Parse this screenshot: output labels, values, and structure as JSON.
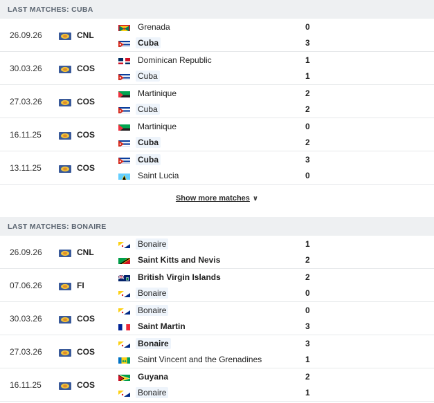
{
  "sections": [
    {
      "title": "LAST MATCHES: CUBA",
      "matches": [
        {
          "date": "26.09.26",
          "comp": "CNL",
          "home": "Grenada",
          "home_flag": "grenada",
          "home_score": "0",
          "away": "Cuba",
          "away_flag": "cuba",
          "away_score": "3",
          "winner": "away",
          "focus": "away"
        },
        {
          "date": "30.03.26",
          "comp": "COS",
          "home": "Dominican Republic",
          "home_flag": "dominican",
          "home_score": "1",
          "away": "Cuba",
          "away_flag": "cuba",
          "away_score": "1",
          "winner": "",
          "focus": "away"
        },
        {
          "date": "27.03.26",
          "comp": "COS",
          "home": "Martinique",
          "home_flag": "martinique",
          "home_score": "2",
          "away": "Cuba",
          "away_flag": "cuba",
          "away_score": "2",
          "winner": "",
          "focus": "away"
        },
        {
          "date": "16.11.25",
          "comp": "COS",
          "home": "Martinique",
          "home_flag": "martinique",
          "home_score": "0",
          "away": "Cuba",
          "away_flag": "cuba",
          "away_score": "2",
          "winner": "away",
          "focus": "away"
        },
        {
          "date": "13.11.25",
          "comp": "COS",
          "home": "Cuba",
          "home_flag": "cuba",
          "home_score": "3",
          "away": "Saint Lucia",
          "away_flag": "stlucia",
          "away_score": "0",
          "winner": "home",
          "focus": "home"
        }
      ],
      "show_more": "Show more matches"
    },
    {
      "title": "LAST MATCHES: BONAIRE",
      "matches": [
        {
          "date": "26.09.26",
          "comp": "CNL",
          "home": "Bonaire",
          "home_flag": "bonaire",
          "home_score": "1",
          "away": "Saint Kitts and Nevis",
          "away_flag": "stkitts",
          "away_score": "2",
          "winner": "away",
          "focus": "home"
        },
        {
          "date": "07.06.26",
          "comp": "FI",
          "home": "British Virgin Islands",
          "home_flag": "bvi",
          "home_score": "2",
          "away": "Bonaire",
          "away_flag": "bonaire",
          "away_score": "0",
          "winner": "home",
          "focus": "away"
        },
        {
          "date": "30.03.26",
          "comp": "COS",
          "home": "Bonaire",
          "home_flag": "bonaire",
          "home_score": "0",
          "away": "Saint Martin",
          "away_flag": "stmartin",
          "away_score": "3",
          "winner": "away",
          "focus": "home"
        },
        {
          "date": "27.03.26",
          "comp": "COS",
          "home": "Bonaire",
          "home_flag": "bonaire",
          "home_score": "3",
          "away": "Saint Vincent and the Grenadines",
          "away_flag": "stvincent",
          "away_score": "1",
          "winner": "home",
          "focus": "home"
        },
        {
          "date": "16.11.25",
          "comp": "COS",
          "home": "Guyana",
          "home_flag": "guyana",
          "home_score": "2",
          "away": "Bonaire",
          "away_flag": "bonaire",
          "away_score": "1",
          "winner": "home",
          "focus": "away"
        }
      ]
    }
  ]
}
